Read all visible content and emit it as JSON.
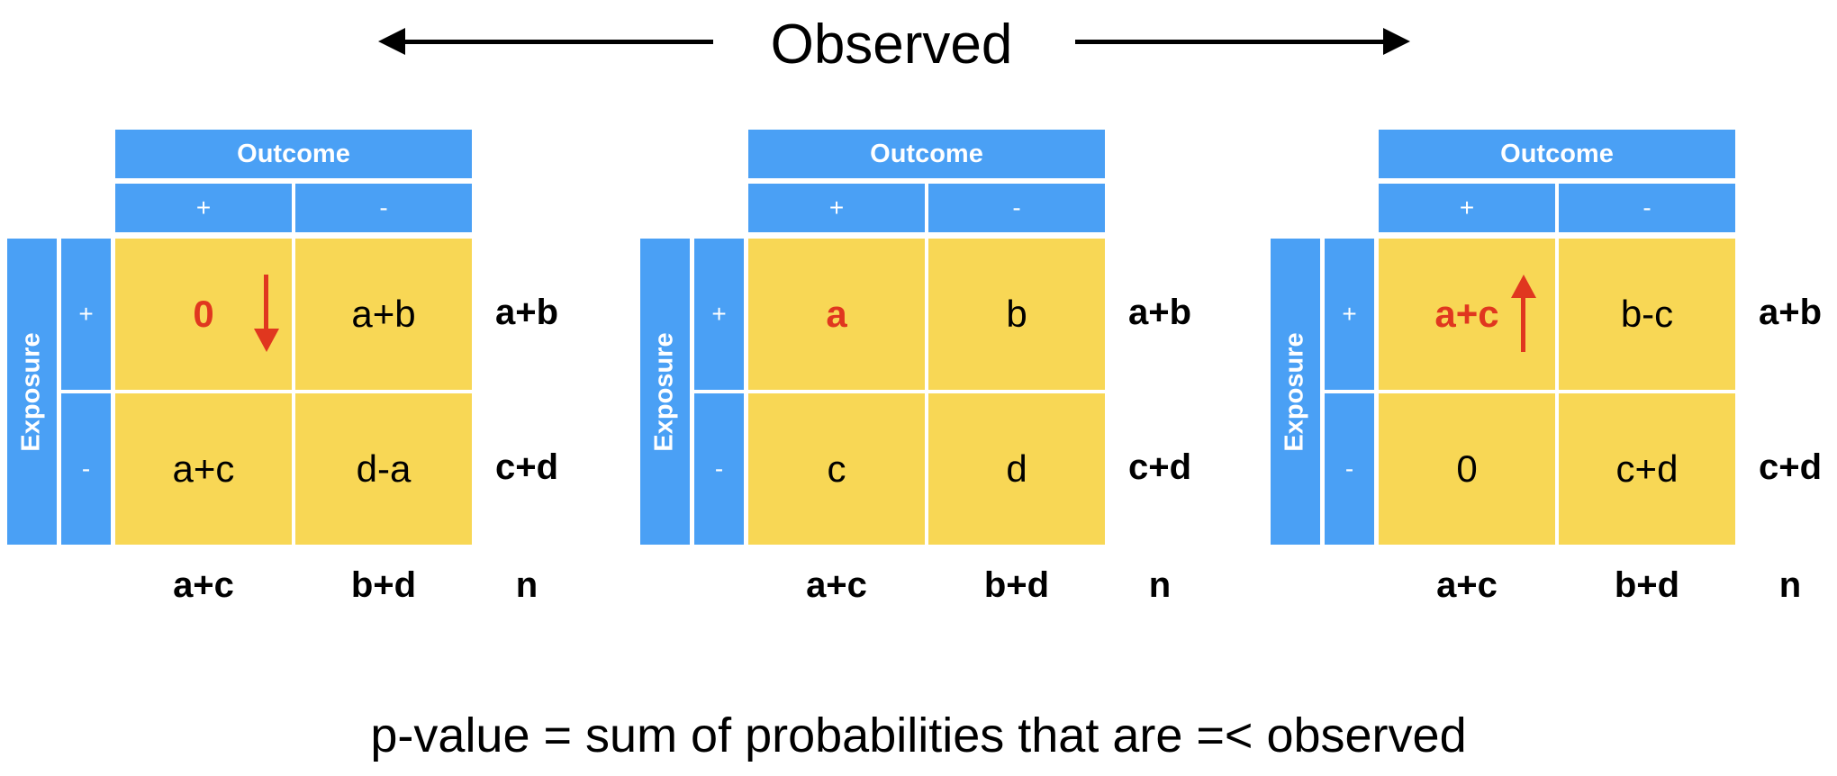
{
  "title": "Observed",
  "footer": "p-value = sum of probabilities that are =< observed",
  "colors": {
    "header_blue": "#4aa0f5",
    "cell_yellow": "#f8d755",
    "highlight_red": "#e0371f"
  },
  "tables": [
    {
      "outcome_label": "Outcome",
      "exposure_label": "Exposure",
      "col_plus": "+",
      "col_minus": "-",
      "row_plus": "+",
      "row_minus": "-",
      "a": "0",
      "b": "a+b",
      "c": "a+c",
      "d": "d-a",
      "row_total_1": "a+b",
      "row_total_2": "c+d",
      "col_total_1": "a+c",
      "col_total_2": "b+d",
      "grand_total": "n",
      "arrow": "down"
    },
    {
      "outcome_label": "Outcome",
      "exposure_label": "Exposure",
      "col_plus": "+",
      "col_minus": "-",
      "row_plus": "+",
      "row_minus": "-",
      "a": "a",
      "b": "b",
      "c": "c",
      "d": "d",
      "row_total_1": "a+b",
      "row_total_2": "c+d",
      "col_total_1": "a+c",
      "col_total_2": "b+d",
      "grand_total": "n",
      "arrow": "none"
    },
    {
      "outcome_label": "Outcome",
      "exposure_label": "Exposure",
      "col_plus": "+",
      "col_minus": "-",
      "row_plus": "+",
      "row_minus": "-",
      "a": "a+c",
      "b": "b-c",
      "c": "0",
      "d": "c+d",
      "row_total_1": "a+b",
      "row_total_2": "c+d",
      "col_total_1": "a+c",
      "col_total_2": "b+d",
      "grand_total": "n",
      "arrow": "up"
    }
  ]
}
